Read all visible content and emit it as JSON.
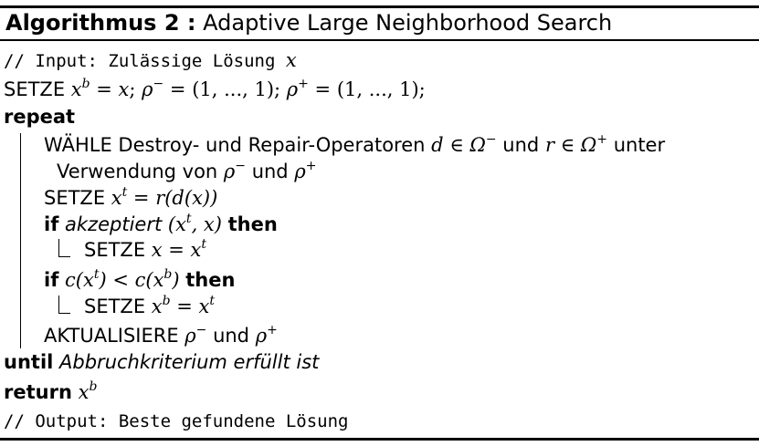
{
  "algorithm": {
    "title_label": "Algorithmus 2 :",
    "title_text": "Adaptive Large Neighborhood Search",
    "input_comment": "// Input: Zulässige Lösung",
    "input_var": "x",
    "init": {
      "setze": "SETZE",
      "xb": "x",
      "xb_sup": "b",
      "eq1": " = ",
      "x": "x",
      "sep1": "; ",
      "rho_minus": "ρ",
      "rho_minus_sup": "−",
      "eq2": " = (1, ..., 1); ",
      "rho_plus": "ρ",
      "rho_plus_sup": "+",
      "eq3": " = (1, ..., 1);"
    },
    "repeat_kw": "repeat",
    "choose": {
      "text1": "WÄHLE Destroy- und Repair-Operatoren ",
      "d_in": "d ∈ Ω",
      "d_sup": "−",
      "und": " und ",
      "r_in": "r ∈ Ω",
      "r_sup": "+",
      "unter": " unter",
      "text2": "Verwendung von ",
      "rho": "ρ",
      "rho_minus_sup": "−",
      "und2": " und ",
      "rho2": "ρ",
      "rho_plus_sup": "+"
    },
    "setze_xt": {
      "setze": "SETZE ",
      "x": "x",
      "sup": "t",
      "expr": " = r(d(x))"
    },
    "if1": {
      "if_kw": "if",
      "akzeptiert": "akzeptiert",
      "arg_open": " (x",
      "arg_sup": "t",
      "arg_close": ", x) ",
      "then_kw": "then",
      "body_setze": "SETZE ",
      "body_expr": "x = x",
      "body_sup": "t"
    },
    "if2": {
      "if_kw": "if",
      "cond_a": "c(x",
      "cond_a_sup": "t",
      "cond_mid": ") < c(x",
      "cond_b_sup": "b",
      "cond_close": ") ",
      "then_kw": "then",
      "body_setze": "SETZE ",
      "body_x": "x",
      "body_x_sup": "b",
      "body_eq": " = x",
      "body_t_sup": "t"
    },
    "update": {
      "text": "AKTUALISIERE ",
      "rho": "ρ",
      "rho_minus_sup": "−",
      "und": " und ",
      "rho2": "ρ",
      "rho_plus_sup": "+"
    },
    "until_kw": "until",
    "until_text": "Abbruchkriterium erfüllt ist",
    "return_kw": "return",
    "return_var": "x",
    "return_sup": "b",
    "output_comment": "// Output: Beste gefundene Lösung"
  }
}
